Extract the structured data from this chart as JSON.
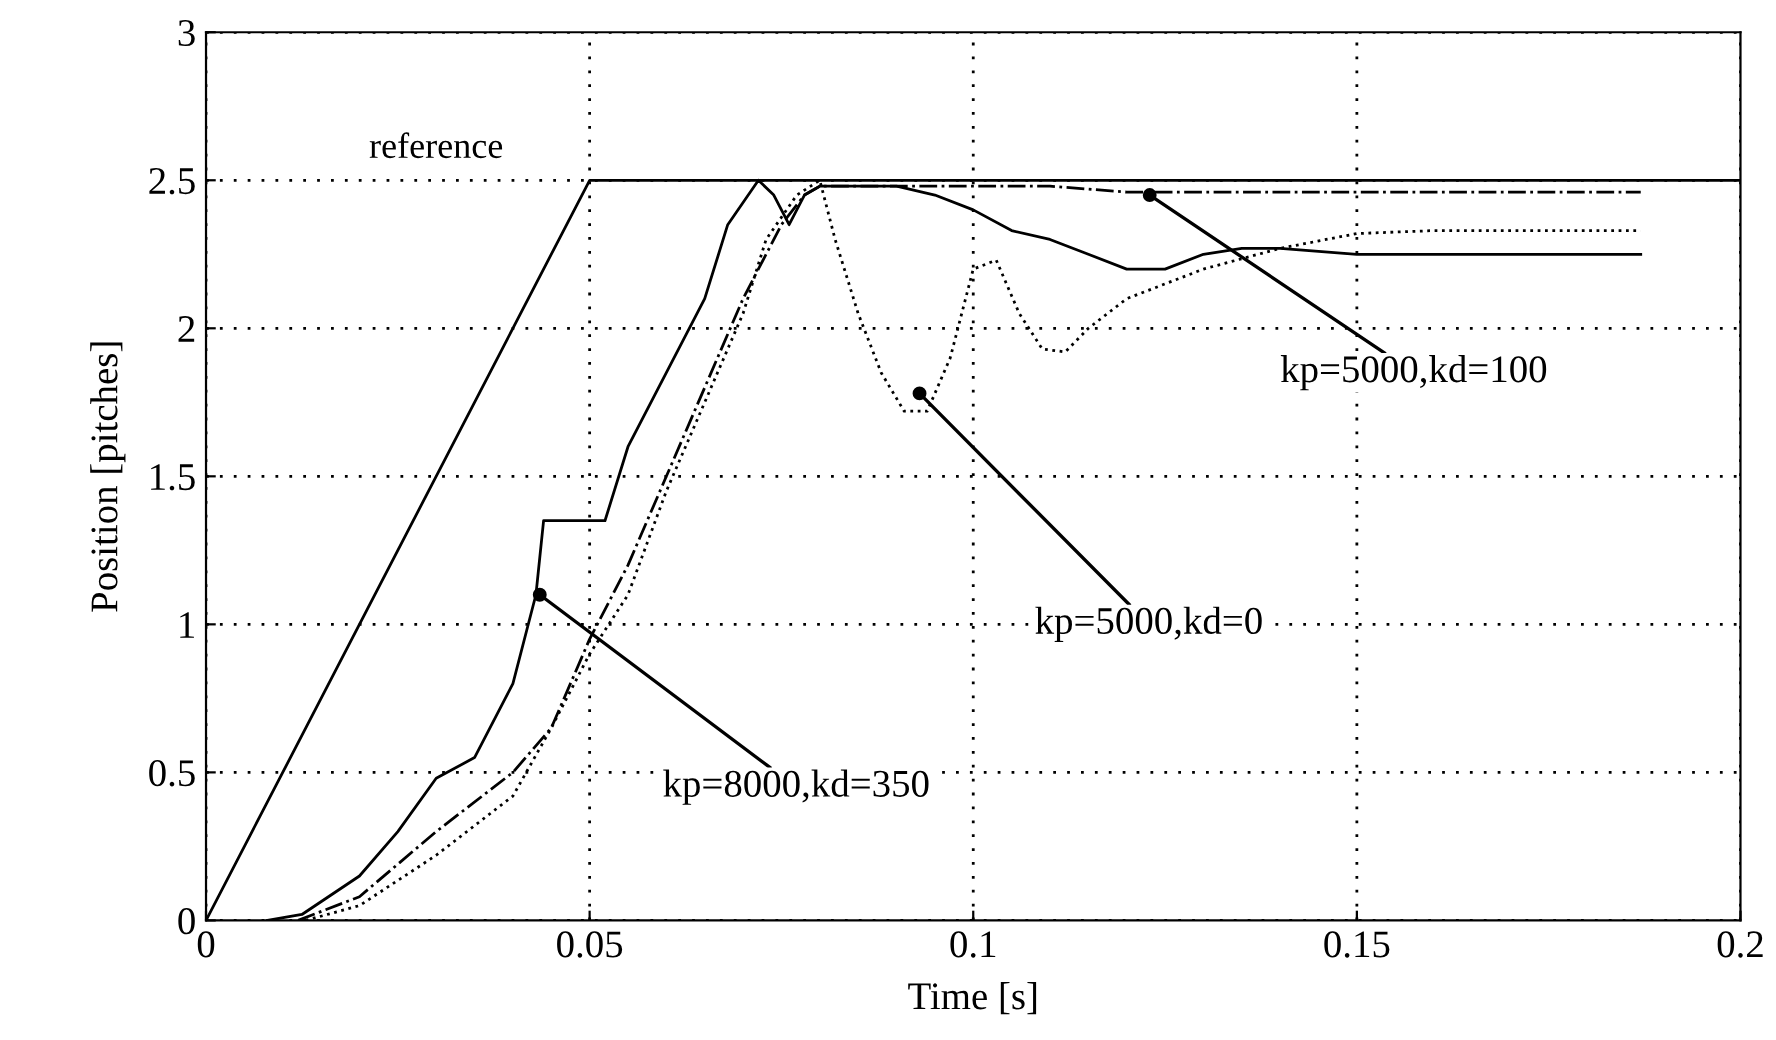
{
  "chart_data": {
    "type": "line",
    "xlabel": "Time [s]",
    "ylabel": "Position [pitches]",
    "xlim": [
      0,
      0.2
    ],
    "ylim": [
      0,
      3
    ],
    "xticks": [
      0,
      0.05,
      0.1,
      0.15,
      0.2
    ],
    "yticks": [
      0,
      0.5,
      1,
      1.5,
      2,
      2.5,
      3
    ],
    "grid": true,
    "legend": false,
    "marker": "none",
    "series": [
      {
        "name": "reference",
        "color": "#000000",
        "line_style": "solid",
        "x": [
          0,
          0.05,
          0.2
        ],
        "values": [
          0,
          2.5,
          2.5
        ]
      },
      {
        "color": "#000000",
        "line_style": "solid",
        "x": [
          0.008,
          0.0125,
          0.02,
          0.025,
          0.03,
          0.035,
          0.04,
          0.043,
          0.044,
          0.052,
          0.055,
          0.06,
          0.065,
          0.068,
          0.072,
          0.074,
          0.076,
          0.078,
          0.08,
          0.09,
          0.095,
          0.1,
          0.105,
          0.11,
          0.115,
          0.12,
          0.125,
          0.13,
          0.135,
          0.14,
          0.15,
          0.17,
          0.187
        ],
        "values": [
          0,
          0.02,
          0.15,
          0.3,
          0.48,
          0.55,
          0.8,
          1.1,
          1.35,
          1.35,
          1.6,
          1.85,
          2.1,
          2.35,
          2.5,
          2.45,
          2.35,
          2.45,
          2.48,
          2.48,
          2.45,
          2.4,
          2.33,
          2.3,
          2.25,
          2.2,
          2.2,
          2.25,
          2.27,
          2.27,
          2.25,
          2.25,
          2.25
        ]
      },
      {
        "color": "#000000",
        "line_style": "dashed",
        "x": [
          0.012,
          0.02,
          0.03,
          0.04,
          0.045,
          0.05,
          0.055,
          0.06,
          0.065,
          0.07,
          0.075,
          0.078,
          0.08,
          0.09,
          0.1,
          0.11,
          0.115,
          0.12,
          0.15,
          0.187
        ],
        "values": [
          0,
          0.08,
          0.3,
          0.5,
          0.65,
          0.95,
          1.2,
          1.5,
          1.8,
          2.1,
          2.35,
          2.45,
          2.48,
          2.48,
          2.48,
          2.48,
          2.47,
          2.46,
          2.46,
          2.46
        ]
      },
      {
        "color": "#000000",
        "line_style": "dotted",
        "x": [
          0.013,
          0.02,
          0.03,
          0.04,
          0.045,
          0.05,
          0.055,
          0.06,
          0.065,
          0.07,
          0.073,
          0.077,
          0.08,
          0.082,
          0.085,
          0.088,
          0.091,
          0.094,
          0.097,
          0.1,
          0.103,
          0.106,
          0.109,
          0.112,
          0.115,
          0.12,
          0.125,
          0.13,
          0.14,
          0.15,
          0.16,
          0.187
        ],
        "values": [
          0,
          0.05,
          0.22,
          0.42,
          0.65,
          0.9,
          1.1,
          1.45,
          1.75,
          2.05,
          2.3,
          2.45,
          2.5,
          2.3,
          2.05,
          1.85,
          1.72,
          1.72,
          1.9,
          2.2,
          2.23,
          2.05,
          1.93,
          1.92,
          2.0,
          2.1,
          2.15,
          2.2,
          2.27,
          2.32,
          2.33,
          2.33
        ]
      }
    ],
    "annotations": [
      {
        "text": "kp=8000,kd=350",
        "x": 0.0435,
        "y": 1.1
      },
      {
        "text": "kp=5000,kd=0",
        "x": 0.093,
        "y": 1.78
      },
      {
        "text": "kp=5000,kd=100",
        "x": 0.123,
        "y": 2.45
      }
    ]
  }
}
